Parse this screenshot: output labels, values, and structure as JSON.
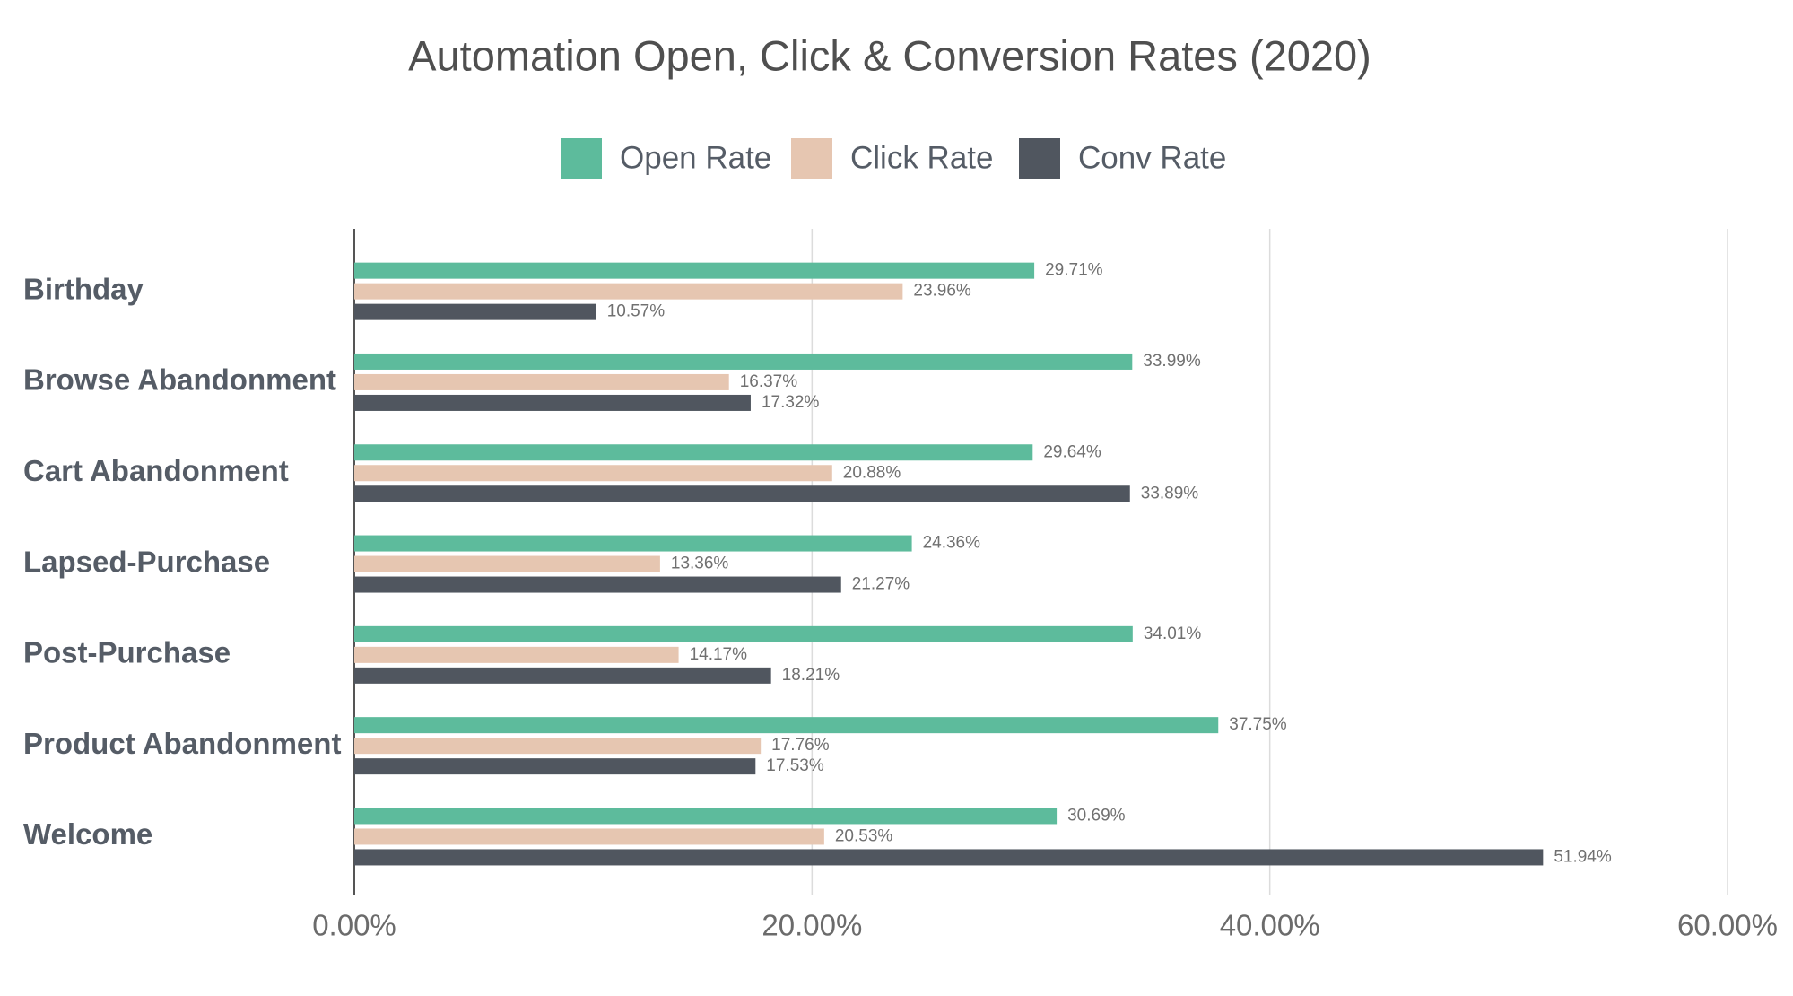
{
  "chart_data": {
    "type": "hbar",
    "title": "Automation Open, Click & Conversion Rates (2020)",
    "categories": [
      "Birthday",
      "Browse Abandonment",
      "Cart Abandonment",
      "Lapsed-Purchase",
      "Post-Purchase",
      "Product Abandonment",
      "Welcome"
    ],
    "series": [
      {
        "name": "Open Rate",
        "color": "#5dbb9c",
        "values": [
          29.71,
          33.99,
          29.64,
          24.36,
          34.01,
          37.75,
          30.69
        ],
        "value_labels": [
          "29.71%",
          "33.99%",
          "29.64%",
          "24.36%",
          "34.01%",
          "37.75%",
          "30.69%"
        ]
      },
      {
        "name": "Click Rate",
        "color": "#e6c6b1",
        "values": [
          23.96,
          16.37,
          20.88,
          13.36,
          14.17,
          17.76,
          20.53
        ],
        "value_labels": [
          "23.96%",
          "16.37%",
          "20.88%",
          "13.36%",
          "14.17%",
          "17.76%",
          "20.53%"
        ]
      },
      {
        "name": "Conv Rate",
        "color": "#50565f",
        "values": [
          10.57,
          17.32,
          33.89,
          21.27,
          18.21,
          17.53,
          51.94
        ],
        "value_labels": [
          "10.57%",
          "17.32%",
          "33.89%",
          "21.27%",
          "18.21%",
          "17.53%",
          "51.94%"
        ]
      }
    ],
    "xlim": [
      0,
      60
    ],
    "xticks": [
      {
        "value": 0,
        "label": "0.00%"
      },
      {
        "value": 20,
        "label": "20.00%"
      },
      {
        "value": 40,
        "label": "40.00%"
      },
      {
        "value": 60,
        "label": "60.00%"
      }
    ],
    "grid": true
  }
}
